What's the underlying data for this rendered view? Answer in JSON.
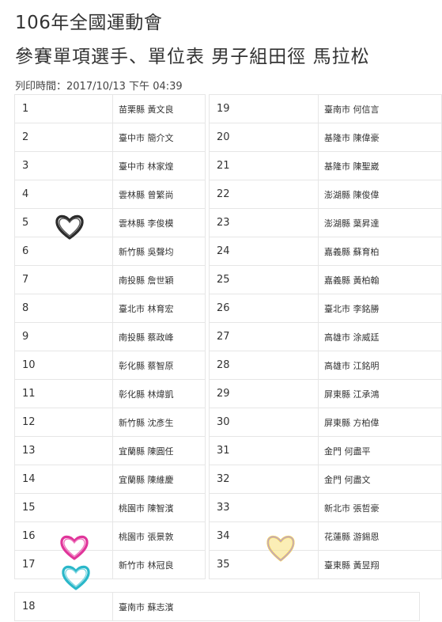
{
  "header": {
    "title": "106年全國運動會",
    "subtitle": "參賽單項選手、單位表 男子組田徑 馬拉松",
    "print_time": "列印時間：2017/10/13 下午 04:39"
  },
  "table": {
    "left_rows": [
      {
        "no": "1",
        "name": "苗栗縣 黃文良"
      },
      {
        "no": "2",
        "name": "臺中市 簡介文"
      },
      {
        "no": "3",
        "name": "臺中市 林家煌"
      },
      {
        "no": "4",
        "name": "雲林縣 曾繁尚"
      },
      {
        "no": "5",
        "name": "雲林縣 李俊模"
      },
      {
        "no": "6",
        "name": "新竹縣 吳聲均"
      },
      {
        "no": "7",
        "name": "南投縣 詹世穎"
      },
      {
        "no": "8",
        "name": "臺北市 林育宏"
      },
      {
        "no": "9",
        "name": "南投縣 蔡政峰"
      },
      {
        "no": "10",
        "name": "彰化縣 蔡智原"
      },
      {
        "no": "11",
        "name": "彰化縣 林煒凱"
      },
      {
        "no": "12",
        "name": "新竹縣 沈彥生"
      },
      {
        "no": "13",
        "name": "宜蘭縣 陳圓任"
      },
      {
        "no": "14",
        "name": "宜蘭縣 陳維慶"
      },
      {
        "no": "15",
        "name": "桃園市 陳智濱"
      },
      {
        "no": "16",
        "name": "桃園市 張景敦"
      },
      {
        "no": "17",
        "name": "新竹市 林冠良"
      }
    ],
    "right_rows": [
      {
        "no": "19",
        "name": "臺南市 何信言"
      },
      {
        "no": "20",
        "name": "基隆市 陳偉豪"
      },
      {
        "no": "21",
        "name": "基隆市 陳聖崴"
      },
      {
        "no": "22",
        "name": "澎湖縣 陳俊偉"
      },
      {
        "no": "23",
        "name": "澎湖縣 葉昇達"
      },
      {
        "no": "24",
        "name": "嘉義縣 蘇育柏"
      },
      {
        "no": "25",
        "name": "嘉義縣 黃柏翰"
      },
      {
        "no": "26",
        "name": "臺北市 李銘勝"
      },
      {
        "no": "27",
        "name": "高雄市 涂威廷"
      },
      {
        "no": "28",
        "name": "高雄市 江銘明"
      },
      {
        "no": "29",
        "name": "屏東縣 江承鴻"
      },
      {
        "no": "30",
        "name": "屏東縣 方柏偉"
      },
      {
        "no": "31",
        "name": "金門 何盡平"
      },
      {
        "no": "32",
        "name": "金門 何盡文"
      },
      {
        "no": "33",
        "name": "新北市 張哲豪"
      },
      {
        "no": "34",
        "name": "花蓮縣 游錫恩"
      },
      {
        "no": "35",
        "name": "臺東縣 黃昱翔"
      }
    ],
    "last_row": {
      "no": "18",
      "name": "臺南市 蘇志濱"
    }
  },
  "decorations": {
    "hearts": [
      {
        "icon": "heart-outline-dark-icon",
        "color": "#2b2b2b",
        "row": "5"
      },
      {
        "icon": "heart-outline-pink-icon",
        "color": "#e0359a",
        "row": "16"
      },
      {
        "icon": "heart-outline-teal-icon",
        "color": "#2ab7c9",
        "row": "17"
      },
      {
        "icon": "heart-outline-yellow-icon",
        "color": "#f3d35b",
        "row": "34"
      }
    ]
  }
}
